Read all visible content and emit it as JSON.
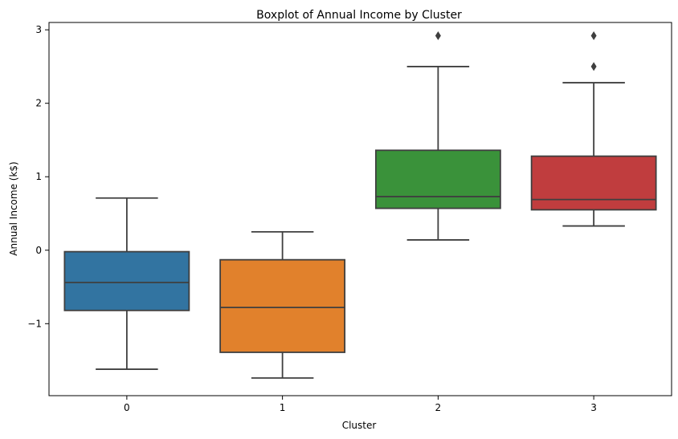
{
  "chart_data": {
    "type": "box",
    "title": "Boxplot of Annual Income by Cluster",
    "xlabel": "Cluster",
    "ylabel": "Annual Income (k$)",
    "ylim": [
      -1.98,
      3.1
    ],
    "yticks": [
      3,
      2,
      1,
      0,
      -1
    ],
    "ytick_labels": [
      "3",
      "2",
      "1",
      "0",
      "−1"
    ],
    "categories": [
      "0",
      "1",
      "2",
      "3"
    ],
    "colors": [
      "#3274a1",
      "#e1812c",
      "#3a923a",
      "#c03d3e"
    ],
    "boxes": [
      {
        "category": "0",
        "whisker_low": -1.62,
        "q1": -0.82,
        "median": -0.44,
        "q3": -0.02,
        "whisker_high": 0.71,
        "outliers": []
      },
      {
        "category": "1",
        "whisker_low": -1.74,
        "q1": -1.39,
        "median": -0.78,
        "q3": -0.13,
        "whisker_high": 0.25,
        "outliers": []
      },
      {
        "category": "2",
        "whisker_low": 0.14,
        "q1": 0.57,
        "median": 0.73,
        "q3": 1.36,
        "whisker_high": 2.5,
        "outliers": [
          2.92
        ]
      },
      {
        "category": "3",
        "whisker_low": 0.33,
        "q1": 0.55,
        "median": 0.69,
        "q3": 1.28,
        "whisker_high": 2.28,
        "outliers": [
          2.5,
          2.92
        ]
      }
    ],
    "grid": false,
    "legend": "none"
  }
}
